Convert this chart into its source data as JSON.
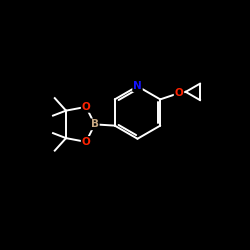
{
  "background_color": "#000000",
  "bond_color": "#FFFFFF",
  "atom_colors": {
    "B": "#C8A882",
    "O": "#FF2200",
    "N": "#1414FF",
    "C": "#FFFFFF"
  },
  "figsize": [
    2.5,
    2.5
  ],
  "dpi": 100,
  "lw": 1.4
}
